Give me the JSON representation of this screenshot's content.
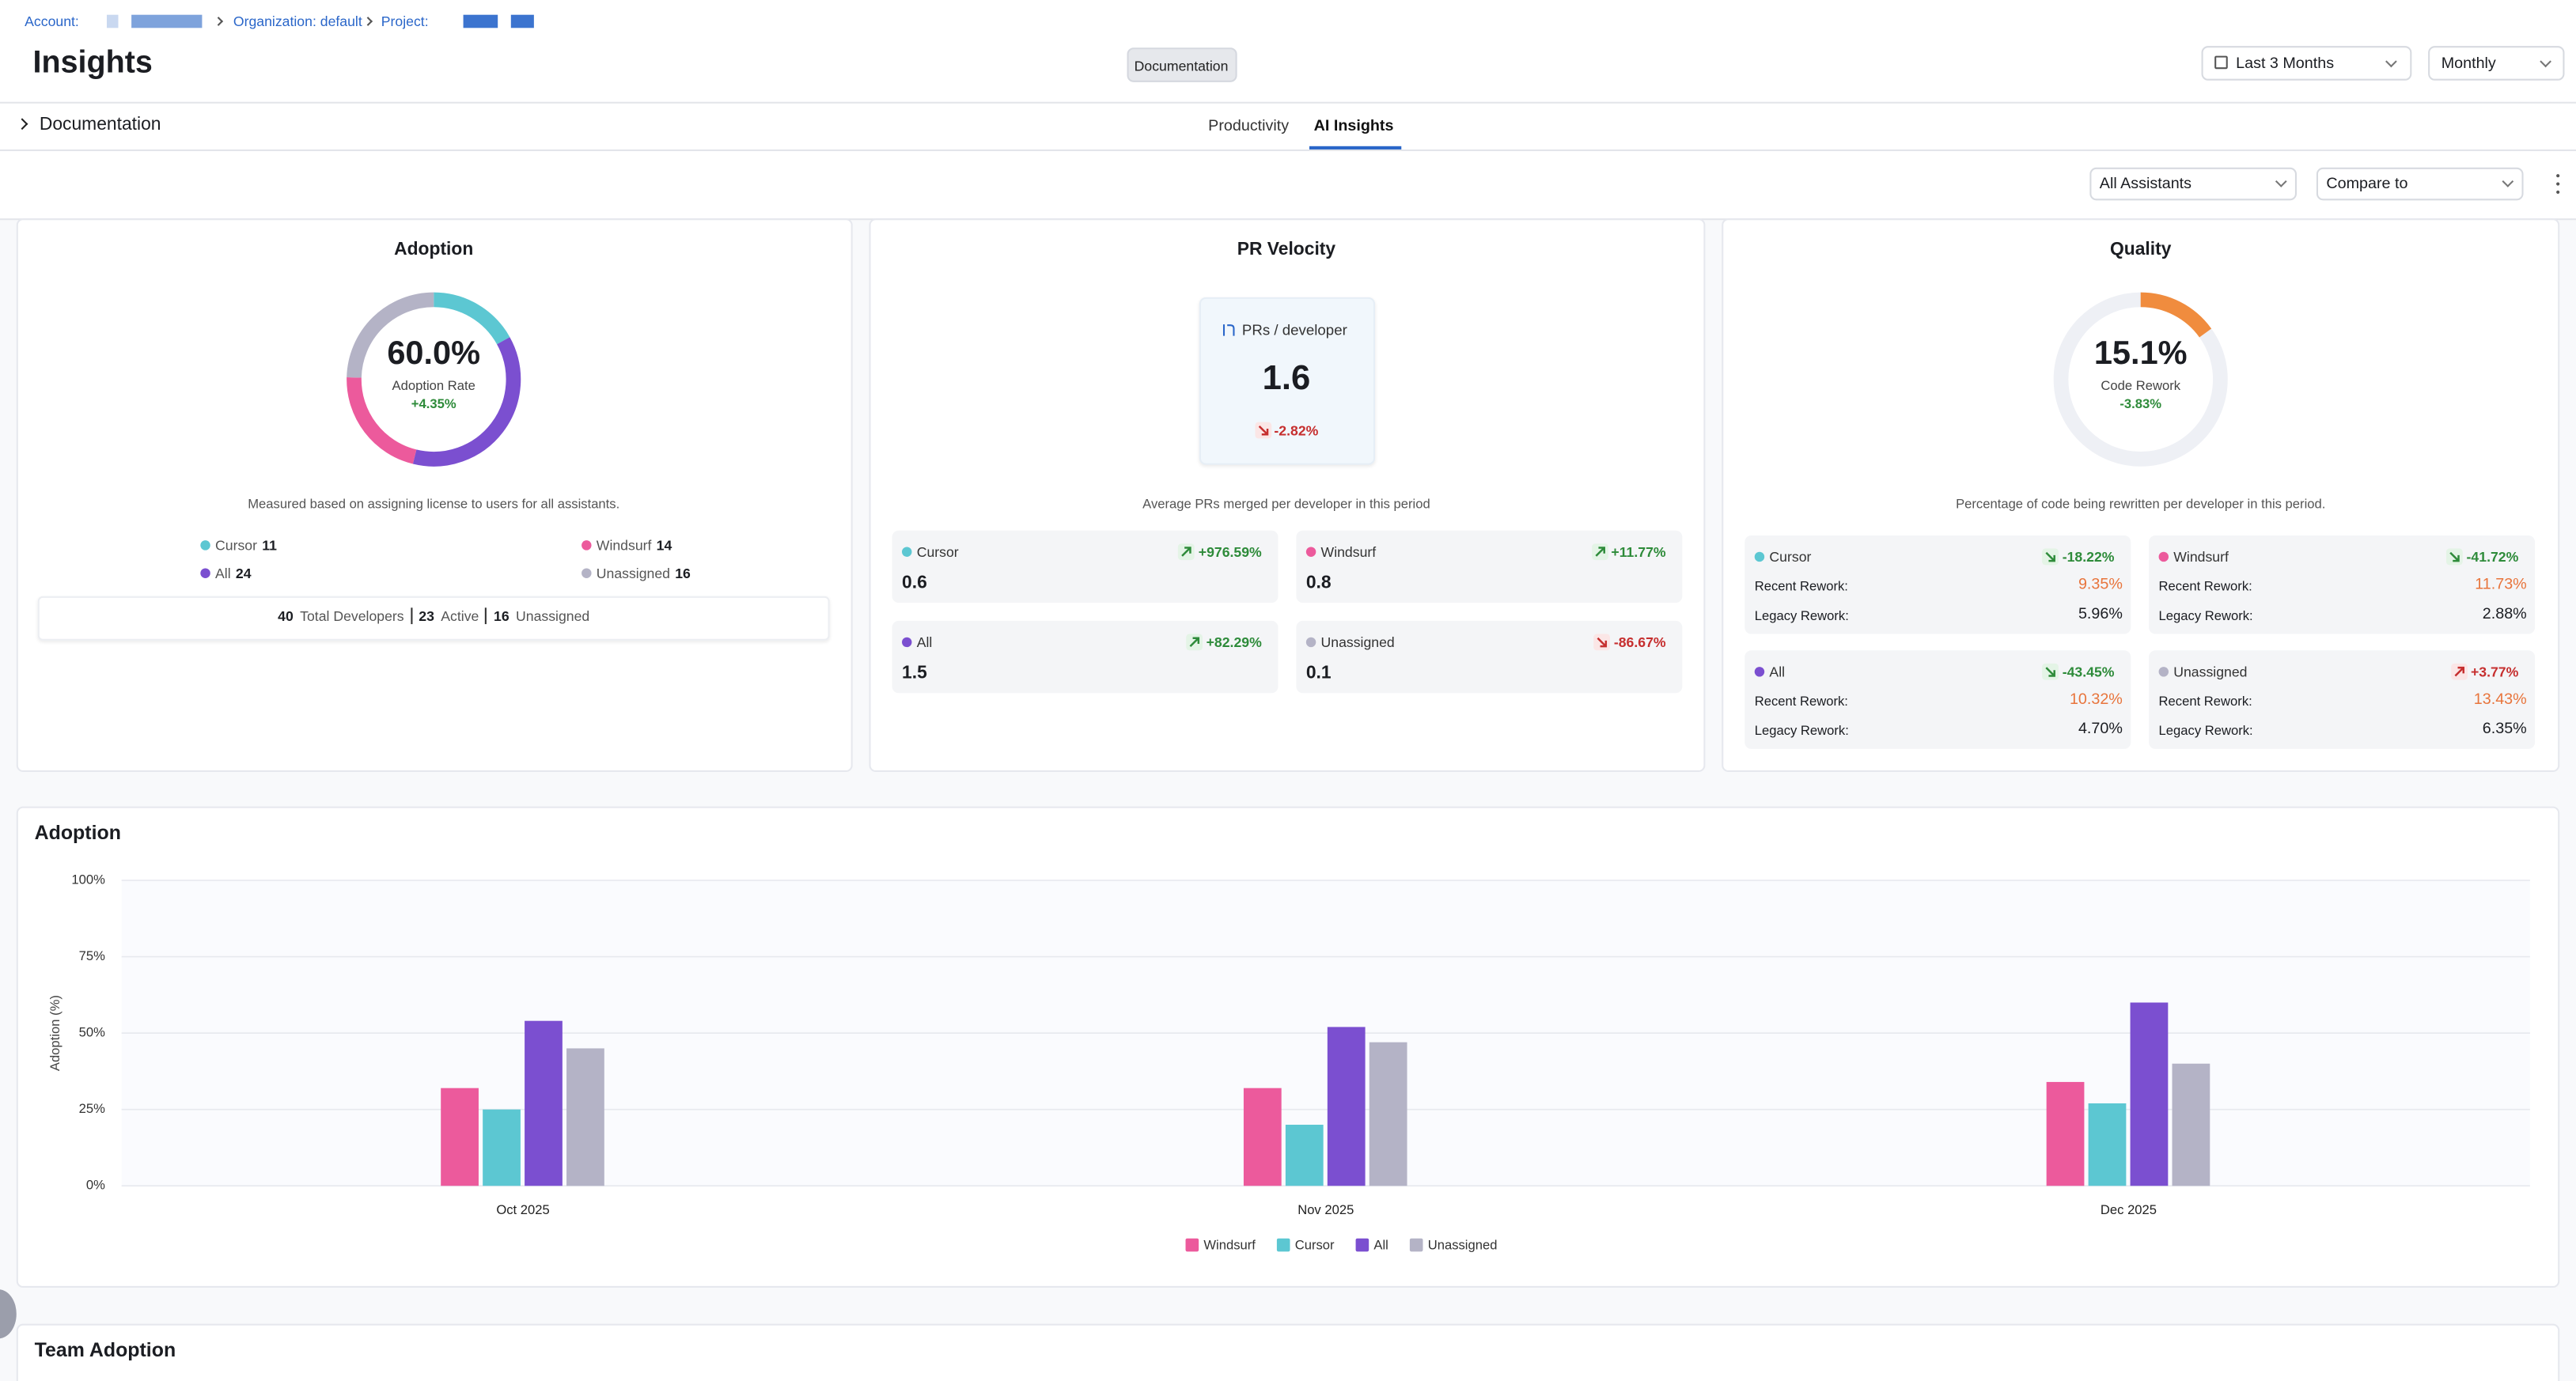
{
  "breadcrumb": {
    "account": "Account:",
    "organization": "Organization: default",
    "project": "Project:"
  },
  "header": {
    "title": "Insights",
    "doc_button": "Documentation",
    "date_range": "Last 3 Months",
    "granularity": "Monthly"
  },
  "doc_toggle": "Documentation",
  "tabs": [
    "Productivity",
    "AI Insights"
  ],
  "filters": {
    "assistants": "All Assistants",
    "compare": "Compare to"
  },
  "adoption_card": {
    "title": "Adoption",
    "rate": "60.0%",
    "rate_label": "Adoption Rate",
    "change": "+4.35%",
    "note": "Measured based on assigning license to users for all assistants.",
    "legend": [
      {
        "name": "Cursor",
        "count": 11,
        "color": "#5cc7d2"
      },
      {
        "name": "Windsurf",
        "count": 14,
        "color": "#ec5a9c"
      },
      {
        "name": "All",
        "count": 24,
        "color": "#7b4fd0"
      },
      {
        "name": "Unassigned",
        "count": 16,
        "color": "#b4b3c6"
      }
    ],
    "totals": [
      {
        "count": 40,
        "label": "Total Developers"
      },
      {
        "count": 23,
        "label": "Active"
      },
      {
        "count": 16,
        "label": "Unassigned"
      }
    ]
  },
  "velocity_card": {
    "title": "PR Velocity",
    "metric_label": "PRs / developer",
    "value": "1.6",
    "change": "-2.82%",
    "note": "Average PRs merged per developer in this period",
    "items": [
      {
        "name": "Cursor",
        "value": "0.6",
        "change": "+976.59%"
      },
      {
        "name": "Windsurf",
        "value": "0.8",
        "change": "+11.77%"
      },
      {
        "name": "All",
        "value": "1.5",
        "change": "+82.29%"
      },
      {
        "name": "Unassigned",
        "value": "0.1",
        "change": "-86.67%"
      }
    ]
  },
  "quality_card": {
    "title": "Quality",
    "value": 15.1,
    "value_label": "15.1%",
    "metric_label": "Code Rework",
    "change": "-3.83%",
    "color": "#f08c3e",
    "note": "Percentage of code being rewritten per developer in this period.",
    "recent_label": "Recent Rework:",
    "legacy_label": "Legacy Rework:",
    "items": [
      {
        "name": "Cursor",
        "change": "-18.22%",
        "recent": "9.35%",
        "legacy": "5.96%"
      },
      {
        "name": "Windsurf",
        "change": "-41.72%",
        "recent": "11.73%",
        "legacy": "2.88%"
      },
      {
        "name": "All",
        "change": "-43.45%",
        "recent": "10.32%",
        "legacy": "4.70%"
      },
      {
        "name": "Unassigned",
        "change": "+3.77%",
        "recent": "13.43%",
        "legacy": "6.35%"
      }
    ]
  },
  "chart_data": {
    "type": "bar",
    "title": "Adoption",
    "y_label": "Adoption (%)",
    "categories": [
      "Oct 2025",
      "Nov 2025",
      "Dec 2025"
    ],
    "series": [
      {
        "name": "Windsurf",
        "color": "#ec5a9c",
        "values": [
          32,
          32,
          34
        ]
      },
      {
        "name": "Cursor",
        "color": "#5cc7d2",
        "values": [
          25,
          20,
          27
        ]
      },
      {
        "name": "All",
        "color": "#7b4fd0",
        "values": [
          54,
          52,
          60
        ]
      },
      {
        "name": "Unassigned",
        "color": "#b4b3c6",
        "values": [
          45,
          47,
          40
        ]
      }
    ],
    "ylim": [
      0,
      100
    ],
    "yticks": [
      {
        "value": 0,
        "label": "0%"
      },
      {
        "value": 25,
        "label": "25%"
      },
      {
        "value": 50,
        "label": "50%"
      },
      {
        "value": 75,
        "label": "75%"
      },
      {
        "value": 100,
        "label": "100%"
      }
    ],
    "grid": true,
    "legend": "bottom"
  },
  "team_adoption": {
    "title": "Team Adoption"
  }
}
